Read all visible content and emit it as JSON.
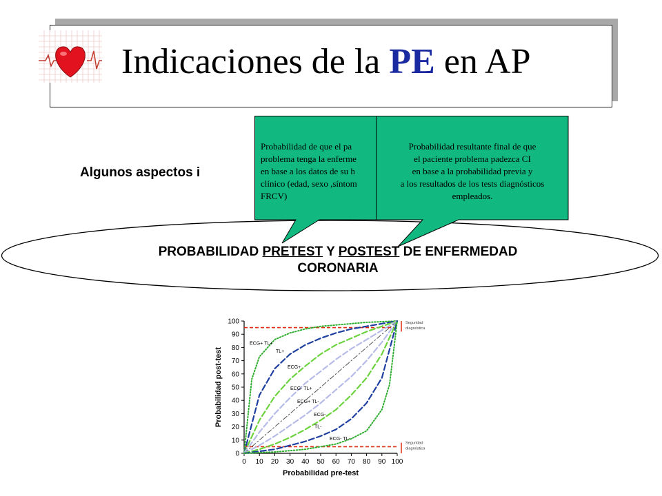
{
  "title": {
    "prefix": "Indicaciones de la",
    "highlight": "PE",
    "suffix": "en AP"
  },
  "aspects_text": "Algunos aspectos  i",
  "ellipse": {
    "line1_pre": "PROBABILIDAD ",
    "pretest": "PRETEST",
    "mid": " Y ",
    "postest": "POSTEST",
    "line1_post": " DE ENFERMEDAD",
    "line2": "CORONARIA"
  },
  "callout_left": {
    "lines": [
      "Probabilidad de que el  pa",
      "problema tenga la enferme",
      "en base a los datos de su h",
      "clínico (edad, sexo ,síntom",
      "FRCV)"
    ]
  },
  "callout_right": {
    "lines": [
      "Probabilidad resultante final de que",
      "el  paciente problema padezca CI",
      "en base a la probabilidad previa y",
      "a los resultados de los tests diagnósticos",
      "empleados."
    ]
  },
  "colors": {
    "callout_fill": "#11b87f",
    "pe_blue": "#1a2aa0",
    "curve_blue": "#1f3fa0",
    "curve_green": "#6cd33e",
    "curve_lightblue": "#b7bbe8",
    "curve_dotted": "#2fae2f",
    "threshold_red": "#e02a10"
  },
  "chart_data": {
    "type": "line",
    "xlabel": "Probabilidad pre-test",
    "ylabel": "Probabilidad post-test",
    "xlim": [
      0,
      100
    ],
    "ylim": [
      0,
      100
    ],
    "xticks": [
      "0",
      "10",
      "20",
      "30",
      "40",
      "50",
      "60",
      "70",
      "80",
      "90",
      "100"
    ],
    "yticks": [
      "0",
      "10",
      "20",
      "30",
      "40",
      "50",
      "60",
      "70",
      "80",
      "90",
      "100"
    ],
    "threshold_labels": {
      "upper": [
        "Seguridad",
        "diagnóstica"
      ],
      "lower": [
        "Seguridad",
        "diagnóstica"
      ]
    },
    "thresholds": [
      95,
      5
    ],
    "series": [
      {
        "name": "ECG+ TL+",
        "style": "dotted",
        "color": "#2fae2f",
        "x": [
          0,
          5,
          10,
          20,
          30,
          40,
          50,
          60,
          70,
          80,
          90,
          100
        ],
        "y": [
          0,
          56,
          73,
          86,
          91,
          94,
          96,
          97,
          98,
          99,
          99.5,
          100
        ]
      },
      {
        "name": "TL+",
        "style": "dash",
        "color": "#1f3fa0",
        "x": [
          0,
          10,
          20,
          30,
          40,
          50,
          60,
          70,
          80,
          90,
          100
        ],
        "y": [
          0,
          44,
          64,
          75,
          82,
          87,
          91,
          94,
          96,
          98,
          100
        ]
      },
      {
        "name": "ECG+",
        "style": "dash",
        "color": "#6cd33e",
        "x": [
          0,
          10,
          20,
          30,
          40,
          50,
          60,
          70,
          80,
          90,
          100
        ],
        "y": [
          0,
          25,
          43,
          56,
          66,
          75,
          82,
          87,
          92,
          96,
          100
        ]
      },
      {
        "name": "ECG- TL+",
        "style": "dash",
        "color": "#b7bbe8",
        "x": [
          0,
          10,
          20,
          30,
          40,
          50,
          60,
          70,
          80,
          90,
          100
        ],
        "y": [
          0,
          16,
          30,
          42,
          53,
          62,
          71,
          79,
          86,
          93,
          100
        ]
      },
      {
        "name": "ECG+ TL-",
        "style": "dashdot",
        "color": "#555555",
        "x": [
          0,
          100
        ],
        "y": [
          0,
          100
        ]
      },
      {
        "name": "ECG-",
        "style": "dash",
        "color": "#b7bbe8",
        "x": [
          0,
          10,
          20,
          30,
          40,
          50,
          60,
          70,
          80,
          90,
          100
        ],
        "y": [
          0,
          6,
          13,
          21,
          29,
          38,
          48,
          58,
          70,
          84,
          100
        ]
      },
      {
        "name": "TL-",
        "style": "dash",
        "color": "#6cd33e",
        "x": [
          0,
          10,
          20,
          30,
          40,
          50,
          60,
          70,
          80,
          90,
          100
        ],
        "y": [
          0,
          3,
          7,
          12,
          18,
          25,
          33,
          44,
          57,
          75,
          100
        ]
      },
      {
        "name": "ECG- TL-",
        "style": "dash",
        "color": "#1f3fa0",
        "x": [
          0,
          10,
          20,
          30,
          40,
          50,
          60,
          70,
          80,
          90,
          100
        ],
        "y": [
          0,
          1.5,
          3,
          6,
          9,
          13,
          18,
          26,
          38,
          57,
          100
        ]
      },
      {
        "name": "",
        "style": "dotted",
        "color": "#2fae2f",
        "x": [
          0,
          10,
          20,
          30,
          40,
          50,
          60,
          70,
          80,
          90,
          95,
          100
        ],
        "y": [
          0,
          0.5,
          1,
          2,
          3,
          5,
          7,
          11,
          17,
          33,
          52,
          100
        ]
      }
    ]
  }
}
